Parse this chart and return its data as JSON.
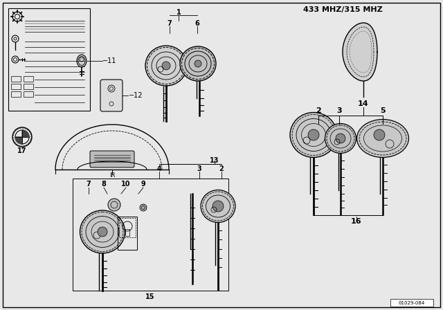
{
  "title": "433 MHZ/315 MHZ",
  "bg_color": "#e8e8e8",
  "line_color": "#000000",
  "text_color": "#000000",
  "watermark": "01029-084",
  "fig_width": 6.4,
  "fig_height": 4.48,
  "dpi": 100
}
